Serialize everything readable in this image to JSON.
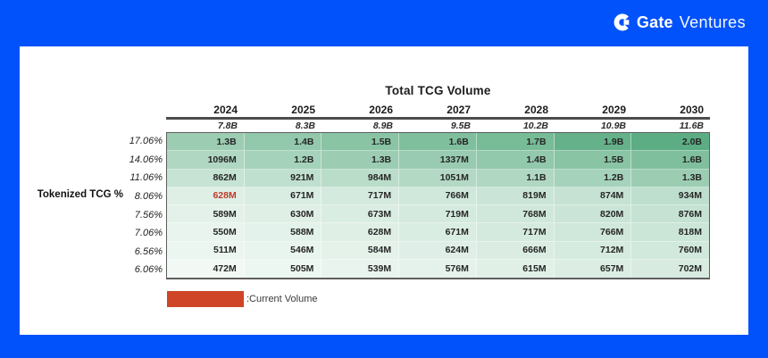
{
  "page": {
    "background_color": "#0152fb",
    "brand": {
      "icon": "gate-logo-icon",
      "name_bold": "Gate",
      "name_light": "Ventures"
    }
  },
  "chart_data": {
    "type": "heatmap",
    "title": "Total TCG Volume",
    "row_axis_label": "Tokenized TCG %",
    "columns": [
      "2024",
      "2025",
      "2026",
      "2027",
      "2028",
      "2029",
      "2030"
    ],
    "total_volume_row": [
      "7.8B",
      "8.3B",
      "8.9B",
      "9.5B",
      "10.2B",
      "10.9B",
      "11.6B"
    ],
    "rows": [
      {
        "pct": "17.06%",
        "values": [
          "1.3B",
          "1.4B",
          "1.5B",
          "1.6B",
          "1.7B",
          "1.9B",
          "2.0B"
        ]
      },
      {
        "pct": "14.06%",
        "values": [
          "1096M",
          "1.2B",
          "1.3B",
          "1337M",
          "1.4B",
          "1.5B",
          "1.6B"
        ]
      },
      {
        "pct": "11.06%",
        "values": [
          "862M",
          "921M",
          "984M",
          "1051M",
          "1.1B",
          "1.2B",
          "1.3B"
        ]
      },
      {
        "pct": "8.06%",
        "values": [
          "628M",
          "671M",
          "717M",
          "766M",
          "819M",
          "874M",
          "934M"
        ]
      },
      {
        "pct": "7.56%",
        "values": [
          "589M",
          "630M",
          "673M",
          "719M",
          "768M",
          "820M",
          "876M"
        ]
      },
      {
        "pct": "7.06%",
        "values": [
          "550M",
          "588M",
          "628M",
          "671M",
          "717M",
          "766M",
          "818M"
        ]
      },
      {
        "pct": "6.56%",
        "values": [
          "511M",
          "546M",
          "584M",
          "624M",
          "666M",
          "712M",
          "760M"
        ]
      },
      {
        "pct": "6.06%",
        "values": [
          "472M",
          "505M",
          "539M",
          "576M",
          "615M",
          "657M",
          "702M"
        ]
      }
    ],
    "highlight": {
      "row_index": 3,
      "col_index": 0,
      "value": "628M",
      "text_color": "#bf3a29",
      "meaning": "Current Volume"
    },
    "heat_scale": {
      "min_value_millions": 472,
      "max_value_millions": 2000,
      "min_color": "#f2f9f5",
      "max_color": "#5cad83"
    },
    "legend": {
      "swatch_color": "#cf4527",
      "label": ":Current Volume"
    }
  }
}
